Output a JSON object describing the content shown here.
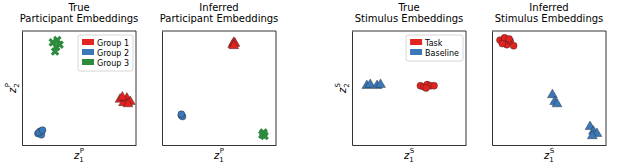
{
  "chart_data": [
    {
      "type": "scatter",
      "title": "True\nParticipant Embeddings",
      "x_label": {
        "base": "z",
        "sub": "1",
        "sup": "P"
      },
      "y_label": {
        "base": "z",
        "sub": "2",
        "sup": "P"
      },
      "xlim": [
        0,
        1
      ],
      "ylim": [
        0,
        1
      ],
      "tick_labels": false,
      "legend": "upper right",
      "series": [
        {
          "name": "Group 1",
          "color": "#e3231f",
          "marker": "triangle",
          "x": [
            0.86,
            0.89,
            0.92,
            0.95,
            0.88,
            0.93
          ],
          "values": [
            0.4,
            0.37,
            0.41,
            0.38,
            0.42,
            0.36
          ]
        },
        {
          "name": "Group 2",
          "color": "#3b78b8",
          "marker": "circle",
          "x": [
            0.14,
            0.16,
            0.17,
            0.15,
            0.18
          ],
          "values": [
            0.1,
            0.12,
            0.09,
            0.11,
            0.13
          ]
        },
        {
          "name": "Group 3",
          "color": "#2e8b3e",
          "marker": "x",
          "x": [
            0.27,
            0.3,
            0.33,
            0.29,
            0.31
          ],
          "values": [
            0.9,
            0.86,
            0.88,
            0.82,
            0.92
          ]
        }
      ]
    },
    {
      "type": "scatter",
      "title": "Inferred\nParticipant Embeddings",
      "x_label": {
        "base": "z",
        "sub": "1",
        "sup": "P"
      },
      "xlim": [
        0,
        1
      ],
      "ylim": [
        0,
        1
      ],
      "tick_labels": false,
      "series": [
        {
          "color": "#e3231f",
          "marker": "triangle",
          "x": [
            0.62,
            0.63,
            0.64,
            0.63
          ],
          "values": [
            0.88,
            0.9,
            0.89,
            0.87
          ]
        },
        {
          "color": "#3b78b8",
          "marker": "circle",
          "x": [
            0.17,
            0.18,
            0.17
          ],
          "values": [
            0.26,
            0.25,
            0.27
          ]
        },
        {
          "color": "#2e8b3e",
          "marker": "x",
          "x": [
            0.88,
            0.89,
            0.9,
            0.89
          ],
          "values": [
            0.09,
            0.1,
            0.08,
            0.11
          ]
        }
      ]
    },
    {
      "type": "scatter",
      "title": "True\nStimulus Embeddings",
      "x_label": {
        "base": "z",
        "sub": "1",
        "sup": "S"
      },
      "y_label": {
        "base": "z",
        "sub": "2",
        "sup": "S"
      },
      "xlim": [
        0,
        1
      ],
      "ylim": [
        0,
        1
      ],
      "tick_labels": false,
      "legend": "upper right",
      "series": [
        {
          "name": "Task",
          "color": "#e3231f",
          "marker": "circle",
          "x": [
            0.6,
            0.63,
            0.66,
            0.69,
            0.72,
            0.65
          ],
          "values": [
            0.52,
            0.51,
            0.53,
            0.52,
            0.52,
            0.5
          ]
        },
        {
          "name": "Baseline",
          "color": "#3b78b8",
          "marker": "triangle",
          "x": [
            0.13,
            0.16,
            0.22,
            0.25
          ],
          "values": [
            0.52,
            0.53,
            0.52,
            0.53
          ]
        }
      ]
    },
    {
      "type": "scatter",
      "title": "Inferred\nStimulus Embeddings",
      "x_label": {
        "base": "z",
        "sub": "1",
        "sup": "S"
      },
      "xlim": [
        0,
        1
      ],
      "ylim": [
        0,
        1
      ],
      "tick_labels": false,
      "series": [
        {
          "color": "#e3231f",
          "marker": "circle",
          "x": [
            0.07,
            0.1,
            0.13,
            0.16,
            0.19,
            0.11,
            0.15,
            0.09
          ],
          "values": [
            0.92,
            0.9,
            0.88,
            0.91,
            0.87,
            0.94,
            0.93,
            0.89
          ]
        },
        {
          "color": "#3b78b8",
          "marker": "triangle",
          "x": [
            0.53,
            0.55,
            0.57,
            0.86,
            0.89,
            0.92,
            0.88
          ],
          "values": [
            0.44,
            0.38,
            0.36,
            0.16,
            0.12,
            0.1,
            0.08
          ]
        }
      ]
    }
  ]
}
